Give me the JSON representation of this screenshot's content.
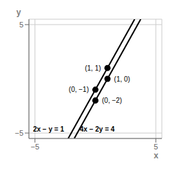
{
  "chart_data": {
    "type": "line",
    "xlabel": "x",
    "ylabel": "y",
    "xlim": [
      -5.5,
      5.5
    ],
    "ylim": [
      -5.5,
      5.5
    ],
    "xticks": [
      {
        "value": -5,
        "label": "−5"
      },
      5
    ],
    "yticks": [
      {
        "value": -5,
        "label": "−5"
      },
      5
    ],
    "grid": true,
    "data_labels": true,
    "series": [
      {
        "name": "2x − y = 1",
        "type": "line",
        "color": "#000000",
        "x": [
          -2.25,
          3.25
        ],
        "values": [
          -5.5,
          5.5
        ]
      },
      {
        "type": "scatter",
        "color": "#000000",
        "x": [
          0,
          1
        ],
        "values": [
          -1,
          1
        ],
        "value_labels": [
          "(0, −1)",
          "(1, 1)"
        ]
      },
      {
        "name": "4x − 2y = 4",
        "type": "line",
        "color": "#000000",
        "x": [
          -1.75,
          3.75
        ],
        "values": [
          -5.5,
          5.5
        ]
      },
      {
        "type": "scatter",
        "color": "#000000",
        "x": [
          0,
          1
        ],
        "values": [
          -2,
          0
        ],
        "value_labels": [
          "(0, −2)",
          "(1, 0)"
        ]
      }
    ]
  }
}
